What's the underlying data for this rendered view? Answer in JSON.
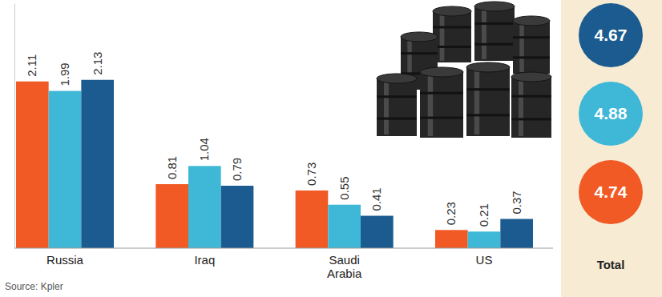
{
  "chart_data": {
    "type": "bar",
    "categories": [
      "Russia",
      "Iraq",
      "Saudi Arabia",
      "US"
    ],
    "series": [
      {
        "color": "#f15a24",
        "values": [
          2.11,
          0.81,
          0.73,
          0.23
        ],
        "total": 4.74
      },
      {
        "color": "#3fb8d8",
        "values": [
          1.99,
          1.04,
          0.55,
          0.21
        ],
        "total": 4.88
      },
      {
        "color": "#1b5b8f",
        "values": [
          2.13,
          0.79,
          0.41,
          0.37
        ],
        "total": 4.67
      }
    ],
    "total_label": "Total",
    "source": "Source: Kpler",
    "ylim": [
      0,
      3.1
    ],
    "data_labels": true,
    "tick_labels": "x"
  }
}
